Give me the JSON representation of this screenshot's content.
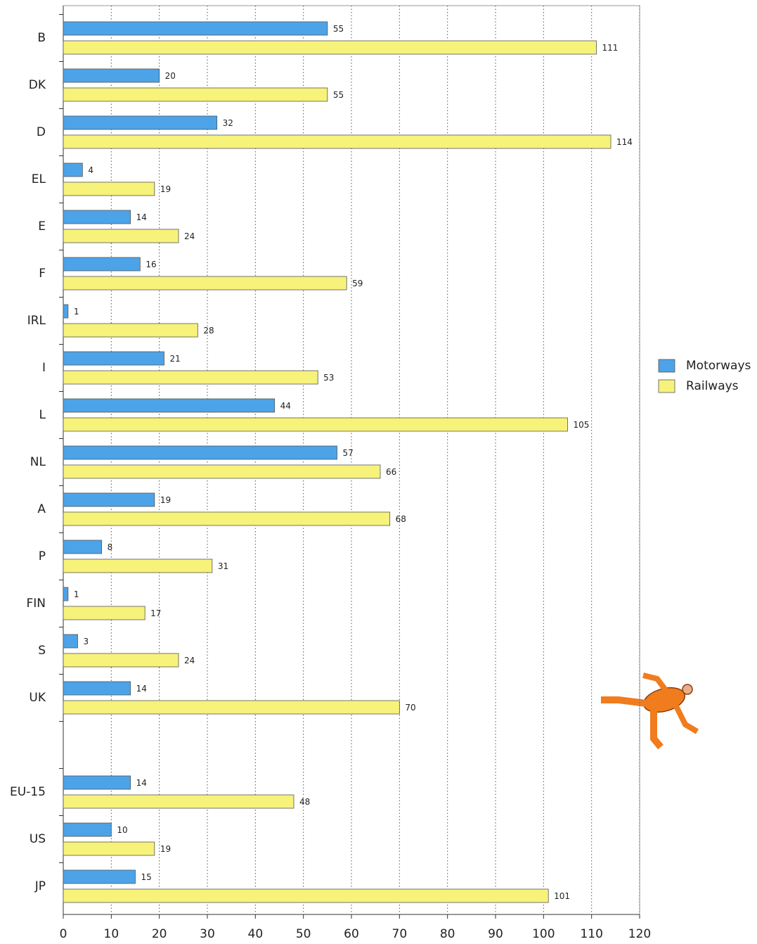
{
  "chart_data": {
    "type": "bar",
    "orientation": "horizontal",
    "categories": [
      "B",
      "DK",
      "D",
      "EL",
      "E",
      "F",
      "IRL",
      "I",
      "L",
      "NL",
      "A",
      "P",
      "FIN",
      "S",
      "UK",
      null,
      "EU-15",
      "US",
      "JP"
    ],
    "series": [
      {
        "name": "Motorways",
        "color": "#4da3e8",
        "values": [
          55,
          20,
          32,
          4,
          14,
          16,
          1,
          21,
          44,
          57,
          19,
          8,
          1,
          3,
          14,
          null,
          14,
          10,
          15
        ]
      },
      {
        "name": "Railways",
        "color": "#f7f27a",
        "values": [
          111,
          55,
          114,
          19,
          24,
          59,
          28,
          53,
          105,
          66,
          68,
          31,
          17,
          24,
          70,
          null,
          48,
          19,
          101
        ]
      }
    ],
    "xlim": [
      0,
      120
    ],
    "xticks": [
      0,
      10,
      20,
      30,
      40,
      50,
      60,
      70,
      80,
      90,
      100,
      110,
      120
    ],
    "grid": true,
    "legend": "right"
  }
}
